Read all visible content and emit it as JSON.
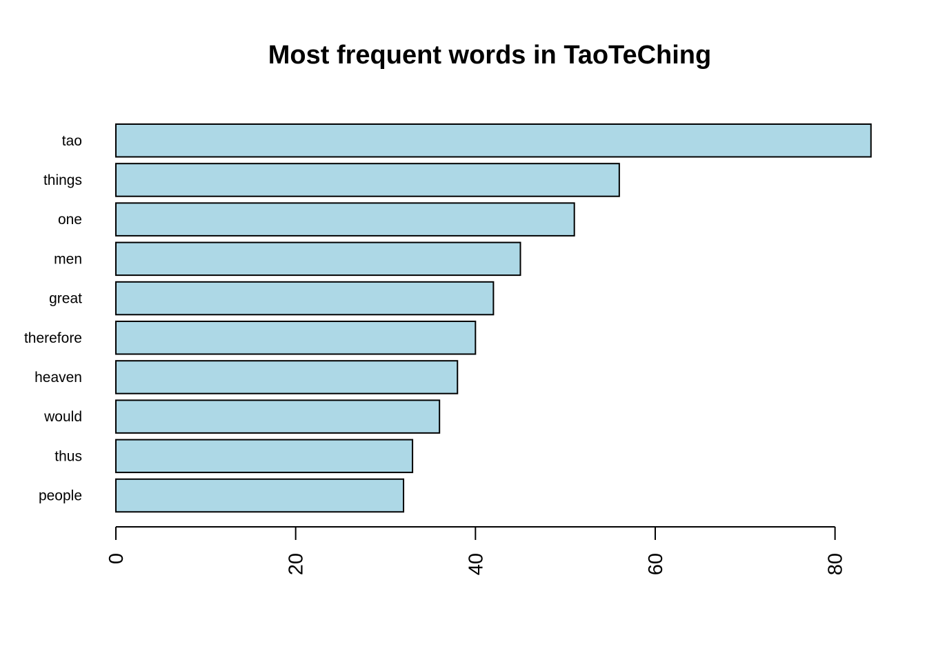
{
  "chart_data": {
    "type": "bar",
    "orientation": "horizontal",
    "title": "Most frequent words in TaoTeChing",
    "xlabel": "",
    "ylabel": "",
    "categories": [
      "tao",
      "things",
      "one",
      "men",
      "great",
      "therefore",
      "heaven",
      "would",
      "thus",
      "people"
    ],
    "values": [
      84,
      56,
      51,
      45,
      42,
      40,
      38,
      36,
      33,
      32
    ],
    "xlim": [
      0,
      84
    ],
    "x_ticks": [
      0,
      20,
      40,
      60,
      80
    ],
    "x_tick_labels": [
      "0",
      "20",
      "40",
      "60",
      "80"
    ],
    "bar_color": "#add8e6",
    "bar_border_color": "#000000",
    "grid": false,
    "legend": "none"
  }
}
